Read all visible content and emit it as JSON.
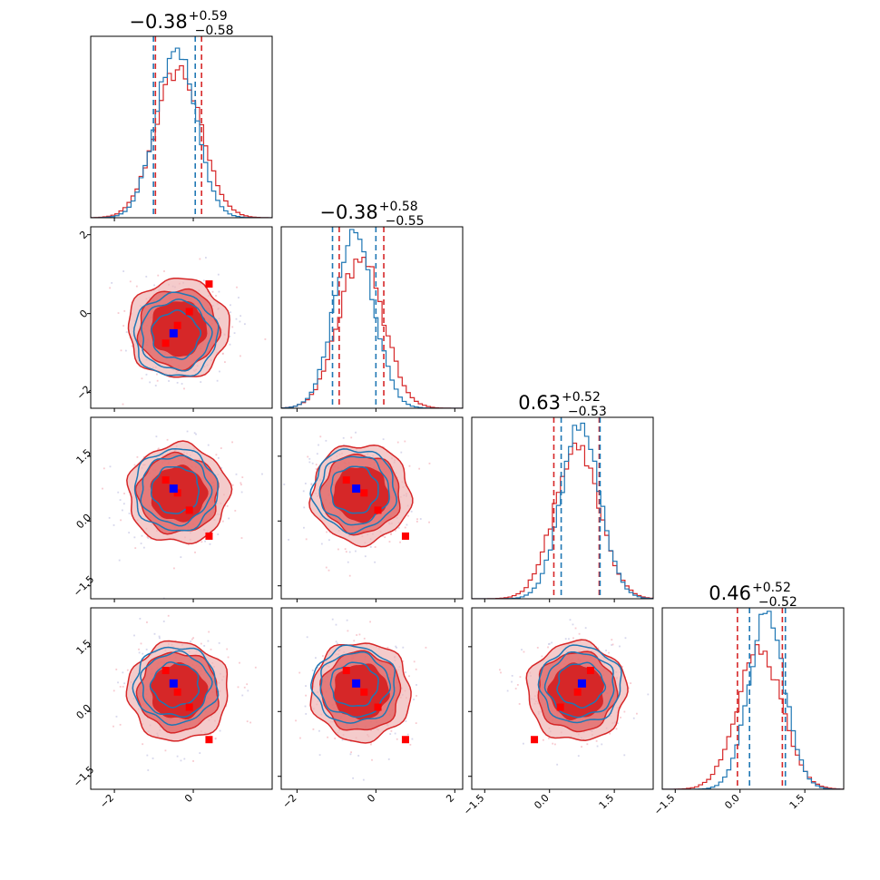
{
  "chart_data": {
    "type": "corner",
    "n_params": 4,
    "colors": {
      "series_a": "#d62728",
      "series_b": "#1f77b4",
      "truth": "#0000ff",
      "markers": "#ff0000"
    },
    "param_ranges": [
      [
        -2.6,
        2.0
      ],
      [
        -2.4,
        2.2
      ],
      [
        -1.8,
        2.4
      ],
      [
        -1.8,
        2.4
      ]
    ],
    "param_ticks": [
      {
        "values": [
          -2,
          0
        ],
        "labels": [
          "−2",
          "0"
        ]
      },
      {
        "values": [
          -2,
          0,
          2
        ],
        "labels": [
          "−2",
          "0",
          "2"
        ]
      },
      {
        "values": [
          -1.5,
          0,
          1.5
        ],
        "labels": [
          "−1.5",
          "0.0",
          "1.5"
        ]
      },
      {
        "values": [
          -1.5,
          0,
          1.5
        ],
        "labels": [
          "−1.5",
          "0.0",
          "1.5"
        ]
      }
    ],
    "titles": [
      {
        "value": "−0.38",
        "plus": "+0.59",
        "minus": "−0.58"
      },
      {
        "value": "−0.38",
        "plus": "+0.58",
        "minus": "−0.55"
      },
      {
        "value": "0.63",
        "plus": "+0.52",
        "minus": "−0.53"
      },
      {
        "value": "0.46",
        "plus": "+0.52",
        "minus": "−0.52"
      }
    ],
    "marginals": [
      {
        "a": {
          "mean": -0.38,
          "sd": 0.58
        },
        "b": {
          "mean": -0.45,
          "sd": 0.5
        },
        "a_quantiles": [
          -0.96,
          0.21
        ],
        "b_quantiles": [
          -1.01,
          0.05
        ]
      },
      {
        "a": {
          "mean": -0.38,
          "sd": 0.57
        },
        "b": {
          "mean": -0.55,
          "sd": 0.5
        },
        "a_quantiles": [
          -0.93,
          0.2
        ],
        "b_quantiles": [
          -1.1,
          0.0
        ]
      },
      {
        "a": {
          "mean": 0.63,
          "sd": 0.52
        },
        "b": {
          "mean": 0.72,
          "sd": 0.45
        },
        "a_quantiles": [
          0.1,
          1.15
        ],
        "b_quantiles": [
          0.27,
          1.17
        ]
      },
      {
        "a": {
          "mean": 0.46,
          "sd": 0.52
        },
        "b": {
          "mean": 0.62,
          "sd": 0.42
        },
        "a_quantiles": [
          -0.06,
          0.98
        ],
        "b_quantiles": [
          0.22,
          1.05
        ]
      }
    ],
    "truth_point": [
      -0.5,
      -0.5,
      0.75,
      0.65
    ],
    "marker_points": [
      [
        -0.7,
        -0.75,
        0.95,
        0.95
      ],
      [
        -0.4,
        -0.3,
        0.65,
        0.45
      ],
      [
        -0.1,
        0.05,
        0.25,
        0.1
      ],
      [
        0.4,
        0.75,
        -0.35,
        -0.65
      ]
    ],
    "contour_levels": [
      {
        "radius_sd": 1.2,
        "fill": "#d62728",
        "alpha": 1.0
      },
      {
        "radius_sd": 1.75,
        "fill": "#e06060",
        "alpha": 0.75
      },
      {
        "radius_sd": 2.2,
        "fill": "#f0b5b5",
        "alpha": 0.7
      }
    ]
  }
}
